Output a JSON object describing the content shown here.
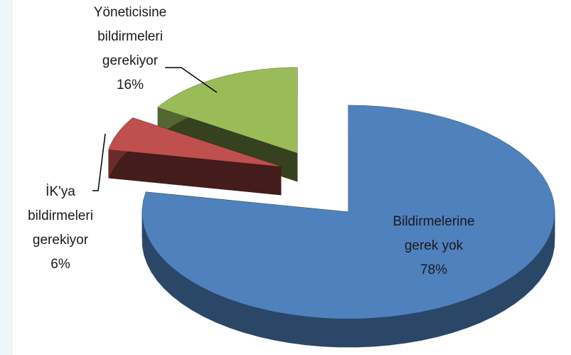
{
  "chart_data": {
    "type": "pie",
    "categories": [
      "Bildirmelerine\ngerek yok",
      "İK'ya\nbildirmeleri\ngerekiyor",
      "Yöneticisine\nbildirmeleri\ngerekiyor"
    ],
    "values": [
      78,
      6,
      16
    ],
    "value_labels": [
      "78%",
      "6%",
      "16%"
    ],
    "colors": [
      "#4f81bd",
      "#c0504d",
      "#9bbb59"
    ]
  }
}
